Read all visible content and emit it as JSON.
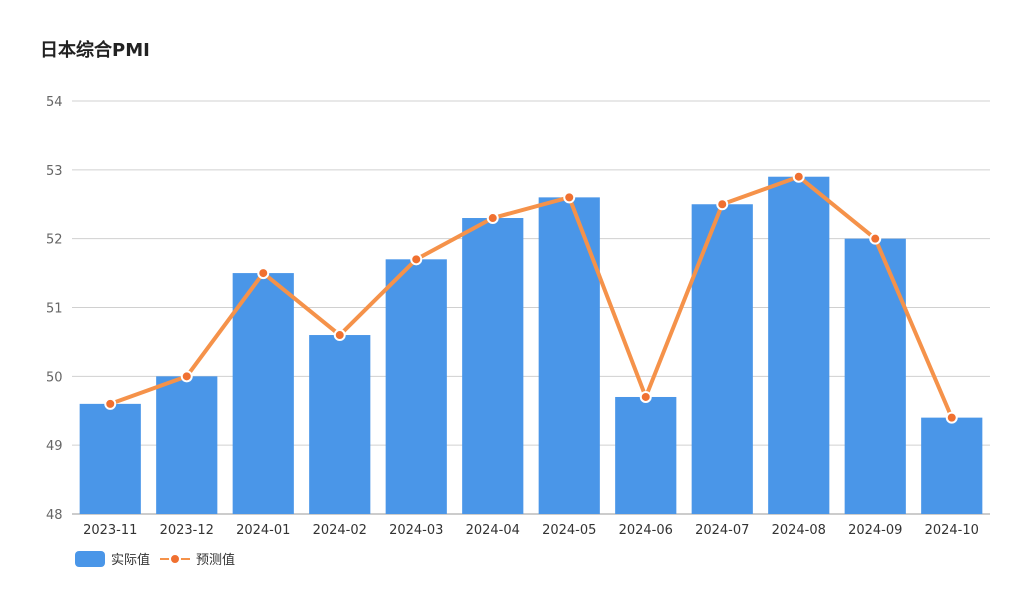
{
  "title": "日本综合PMI",
  "colors": {
    "bar": "#4A96E8",
    "line": "#F5924A",
    "point": "#F07030",
    "grid": "#D0D0D0",
    "axis_text": "#666666"
  },
  "legend": {
    "actual": "实际值",
    "forecast": "预测值"
  },
  "chart_data": {
    "type": "bar",
    "title": "日本综合PMI",
    "xlabel": "",
    "ylabel": "",
    "categories": [
      "2023-11",
      "2023-12",
      "2024-01",
      "2024-02",
      "2024-03",
      "2024-04",
      "2024-05",
      "2024-06",
      "2024-07",
      "2024-08",
      "2024-09",
      "2024-10"
    ],
    "ylim": [
      48,
      54
    ],
    "yticks": [
      48,
      49,
      50,
      51,
      52,
      53,
      54
    ],
    "grid": true,
    "legend_position": "bottom-left",
    "series": [
      {
        "name": "实际值",
        "type": "bar",
        "values": [
          49.6,
          50.0,
          51.5,
          50.6,
          51.7,
          52.3,
          52.6,
          49.7,
          52.5,
          52.9,
          52.0,
          49.4
        ]
      },
      {
        "name": "预测值",
        "type": "line",
        "values": [
          49.6,
          50.0,
          51.5,
          50.6,
          51.7,
          52.3,
          52.6,
          49.7,
          52.5,
          52.9,
          52.0,
          49.4
        ]
      }
    ]
  }
}
